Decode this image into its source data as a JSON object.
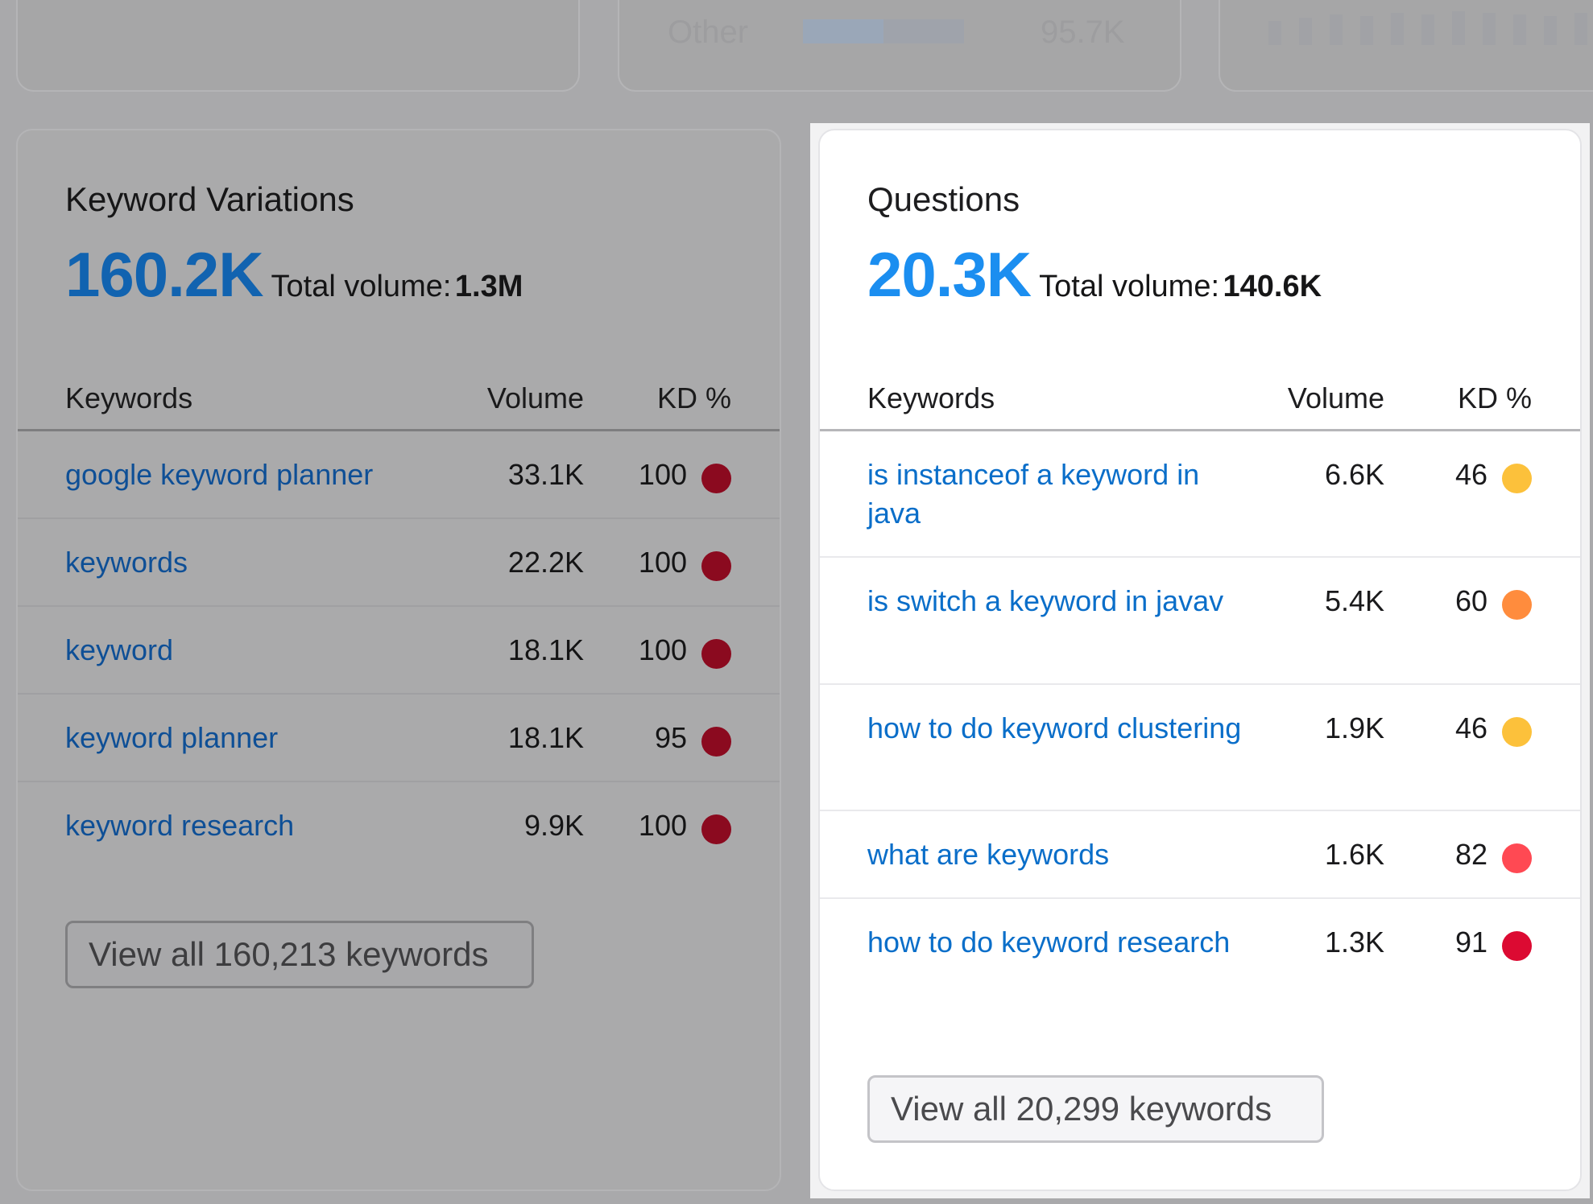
{
  "background_strip": {
    "label": "Other",
    "value": "95.7K"
  },
  "variations": {
    "title": "Keyword Variations",
    "count": "160.2K",
    "total_label": "Total volume:",
    "total_value": "1.3M",
    "columns": {
      "keywords": "Keywords",
      "volume": "Volume",
      "kd": "KD %"
    },
    "rows": [
      {
        "keyword": "google keyword planner",
        "volume": "33.1K",
        "kd": "100",
        "kd_color": "#8b0a1f"
      },
      {
        "keyword": "keywords",
        "volume": "22.2K",
        "kd": "100",
        "kd_color": "#8b0a1f"
      },
      {
        "keyword": "keyword",
        "volume": "18.1K",
        "kd": "100",
        "kd_color": "#8b0a1f"
      },
      {
        "keyword": "keyword planner",
        "volume": "18.1K",
        "kd": "95",
        "kd_color": "#8b0a1f"
      },
      {
        "keyword": "keyword research",
        "volume": "9.9K",
        "kd": "100",
        "kd_color": "#8b0a1f"
      }
    ],
    "view_all": "View all 160,213 keywords"
  },
  "questions": {
    "title": "Questions",
    "count": "20.3K",
    "total_label": "Total volume:",
    "total_value": "140.6K",
    "columns": {
      "keywords": "Keywords",
      "volume": "Volume",
      "kd": "KD %"
    },
    "rows": [
      {
        "keyword": "is instanceof a keyword in java",
        "volume": "6.6K",
        "kd": "46",
        "kd_color": "#fcc13b"
      },
      {
        "keyword": "is switch a keyword in javav",
        "volume": "5.4K",
        "kd": "60",
        "kd_color": "#ff8c3d"
      },
      {
        "keyword": "how to do keyword clustering",
        "volume": "1.9K",
        "kd": "46",
        "kd_color": "#fcc13b"
      },
      {
        "keyword": "what are keywords",
        "volume": "1.6K",
        "kd": "82",
        "kd_color": "#ff4953"
      },
      {
        "keyword": "how to do keyword research",
        "volume": "1.3K",
        "kd": "91",
        "kd_color": "#dc0a32"
      }
    ],
    "view_all": "View all 20,299 keywords"
  }
}
